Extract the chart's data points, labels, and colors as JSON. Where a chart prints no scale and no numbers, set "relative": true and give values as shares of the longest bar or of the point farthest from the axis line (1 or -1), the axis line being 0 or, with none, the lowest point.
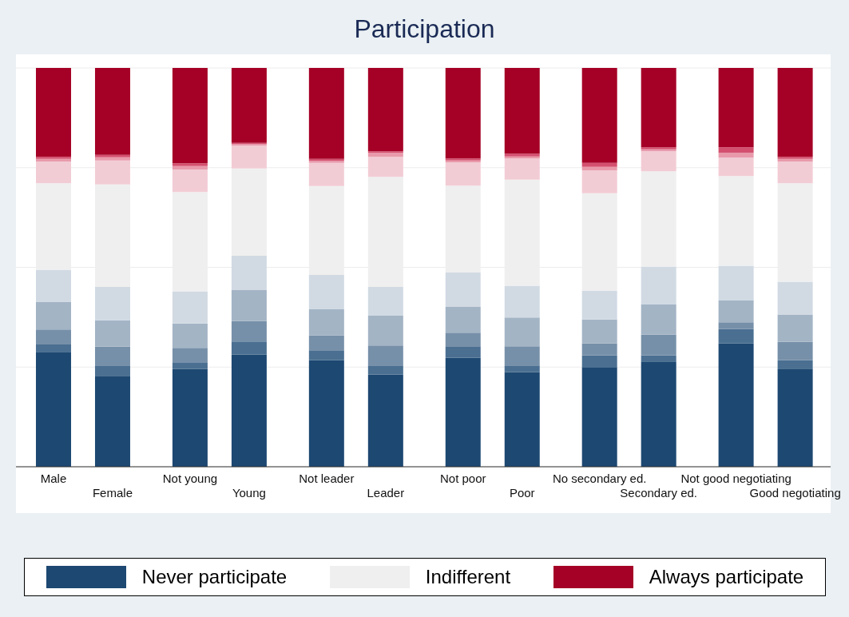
{
  "chart_data": {
    "type": "bar",
    "title": "Participation",
    "stacked": true,
    "relative": true,
    "grid": "y",
    "legend": "bottom",
    "categories": [
      "Male",
      "Female",
      "Not young",
      "Young",
      "Not leader",
      "Leader",
      "Not poor",
      "Poor",
      "No secondary ed.",
      "Secondary ed.",
      "Not good negotiating",
      "Good negotiating"
    ],
    "series": [
      {
        "name": "Never participate",
        "color": "#1d4872",
        "values": [
          0.288,
          0.228,
          0.245,
          0.281,
          0.267,
          0.231,
          0.273,
          0.237,
          0.25,
          0.264,
          0.309,
          0.246
        ]
      },
      {
        "color": "#4a6f91",
        "values": [
          0.02,
          0.026,
          0.017,
          0.033,
          0.025,
          0.023,
          0.029,
          0.017,
          0.029,
          0.015,
          0.036,
          0.021
        ]
      },
      {
        "color": "#7790a9",
        "values": [
          0.036,
          0.047,
          0.036,
          0.051,
          0.037,
          0.05,
          0.034,
          0.048,
          0.03,
          0.052,
          0.017,
          0.046
        ]
      },
      {
        "color": "#a3b4c5",
        "values": [
          0.069,
          0.066,
          0.061,
          0.078,
          0.066,
          0.075,
          0.065,
          0.072,
          0.06,
          0.076,
          0.056,
          0.069
        ]
      },
      {
        "color": "#d1dae3",
        "values": [
          0.081,
          0.084,
          0.081,
          0.086,
          0.086,
          0.072,
          0.086,
          0.08,
          0.072,
          0.095,
          0.086,
          0.082
        ]
      },
      {
        "name": "Indifferent",
        "color": "#efefef",
        "values": [
          0.217,
          0.257,
          0.249,
          0.219,
          0.223,
          0.276,
          0.218,
          0.266,
          0.245,
          0.239,
          0.225,
          0.247
        ]
      },
      {
        "color": "#f2ccd5",
        "values": [
          0.054,
          0.06,
          0.056,
          0.057,
          0.058,
          0.05,
          0.058,
          0.053,
          0.057,
          0.05,
          0.046,
          0.054
        ]
      },
      {
        "color": "#e89aab",
        "values": [
          0.007,
          0.008,
          0.009,
          0.004,
          0.005,
          0.01,
          0.005,
          0.005,
          0.009,
          0.005,
          0.012,
          0.007
        ]
      },
      {
        "color": "#d4506f",
        "values": [
          0.005,
          0.006,
          0.007,
          0.003,
          0.005,
          0.004,
          0.005,
          0.007,
          0.01,
          0.005,
          0.014,
          0.005
        ]
      },
      {
        "name": "Always participate",
        "color": "#a50026",
        "values": [
          0.223,
          0.218,
          0.239,
          0.188,
          0.228,
          0.209,
          0.227,
          0.215,
          0.238,
          0.199,
          0.199,
          0.223
        ]
      }
    ]
  }
}
